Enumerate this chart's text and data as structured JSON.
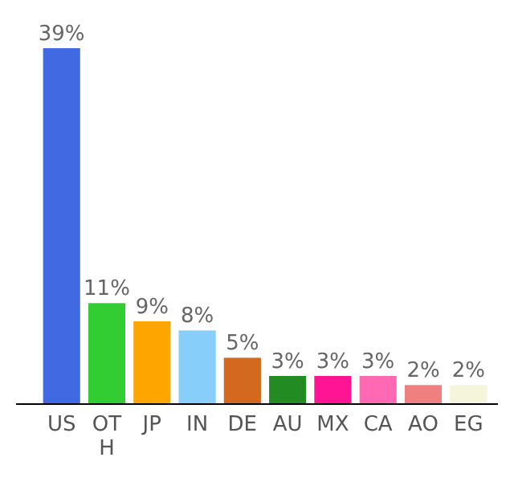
{
  "chart_data": {
    "type": "bar",
    "categories": [
      "US",
      "OTH",
      "JP",
      "IN",
      "DE",
      "AU",
      "MX",
      "CA",
      "AO",
      "EG"
    ],
    "values": [
      39,
      11,
      9,
      8,
      5,
      3,
      3,
      3,
      2,
      2
    ],
    "colors": [
      "#4169e1",
      "#32cd32",
      "#ffa500",
      "#87cefa",
      "#d2691e",
      "#228b22",
      "#ff1493",
      "#ff69b4",
      "#f08080",
      "#f5f5dc"
    ],
    "value_labels": [
      "39%",
      "11%",
      "9%",
      "8%",
      "5%",
      "3%",
      "3%",
      "3%",
      "2%",
      "2%"
    ]
  }
}
